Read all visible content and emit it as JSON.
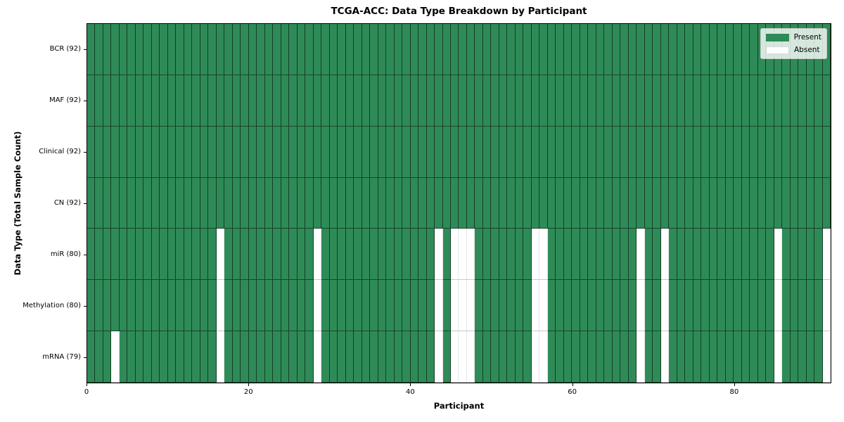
{
  "chart_data": {
    "type": "heatmap",
    "title": "TCGA-ACC: Data Type Breakdown by Participant",
    "xlabel": "Participant",
    "ylabel": "Data Type (Total Sample Count)",
    "n_participants": 92,
    "x_ticks": [
      0,
      20,
      40,
      60,
      80
    ],
    "x_range": [
      0,
      92
    ],
    "grid": true,
    "rows": [
      {
        "name": "BCR",
        "label": "BCR (92)",
        "present_count": 92,
        "absent_participants": []
      },
      {
        "name": "MAF",
        "label": "MAF (92)",
        "present_count": 92,
        "absent_participants": []
      },
      {
        "name": "Clinical",
        "label": "Clinical (92)",
        "present_count": 92,
        "absent_participants": []
      },
      {
        "name": "CN",
        "label": "CN (92)",
        "present_count": 92,
        "absent_participants": []
      },
      {
        "name": "miR",
        "label": "miR (80)",
        "present_count": 80,
        "absent_participants": [
          16,
          28,
          43,
          45,
          46,
          47,
          55,
          56,
          68,
          71,
          85,
          91
        ]
      },
      {
        "name": "Methylation",
        "label": "Methylation (80)",
        "present_count": 80,
        "absent_participants": [
          16,
          28,
          43,
          45,
          46,
          47,
          55,
          56,
          68,
          71,
          85,
          91
        ]
      },
      {
        "name": "mRNA",
        "label": "mRNA (79)",
        "present_count": 79,
        "absent_participants": [
          3,
          16,
          28,
          43,
          45,
          46,
          47,
          55,
          56,
          68,
          71,
          85,
          91
        ]
      }
    ],
    "legend": {
      "position": "upper-right",
      "items": [
        {
          "label": "Present",
          "color": "#2e8b57"
        },
        {
          "label": "Absent",
          "color": "#ffffff"
        }
      ]
    },
    "colors": {
      "present": "#2e8b57",
      "absent": "#ffffff",
      "cell_edge": "rgba(0,0,0,0.55)",
      "spine": "#000000"
    }
  }
}
